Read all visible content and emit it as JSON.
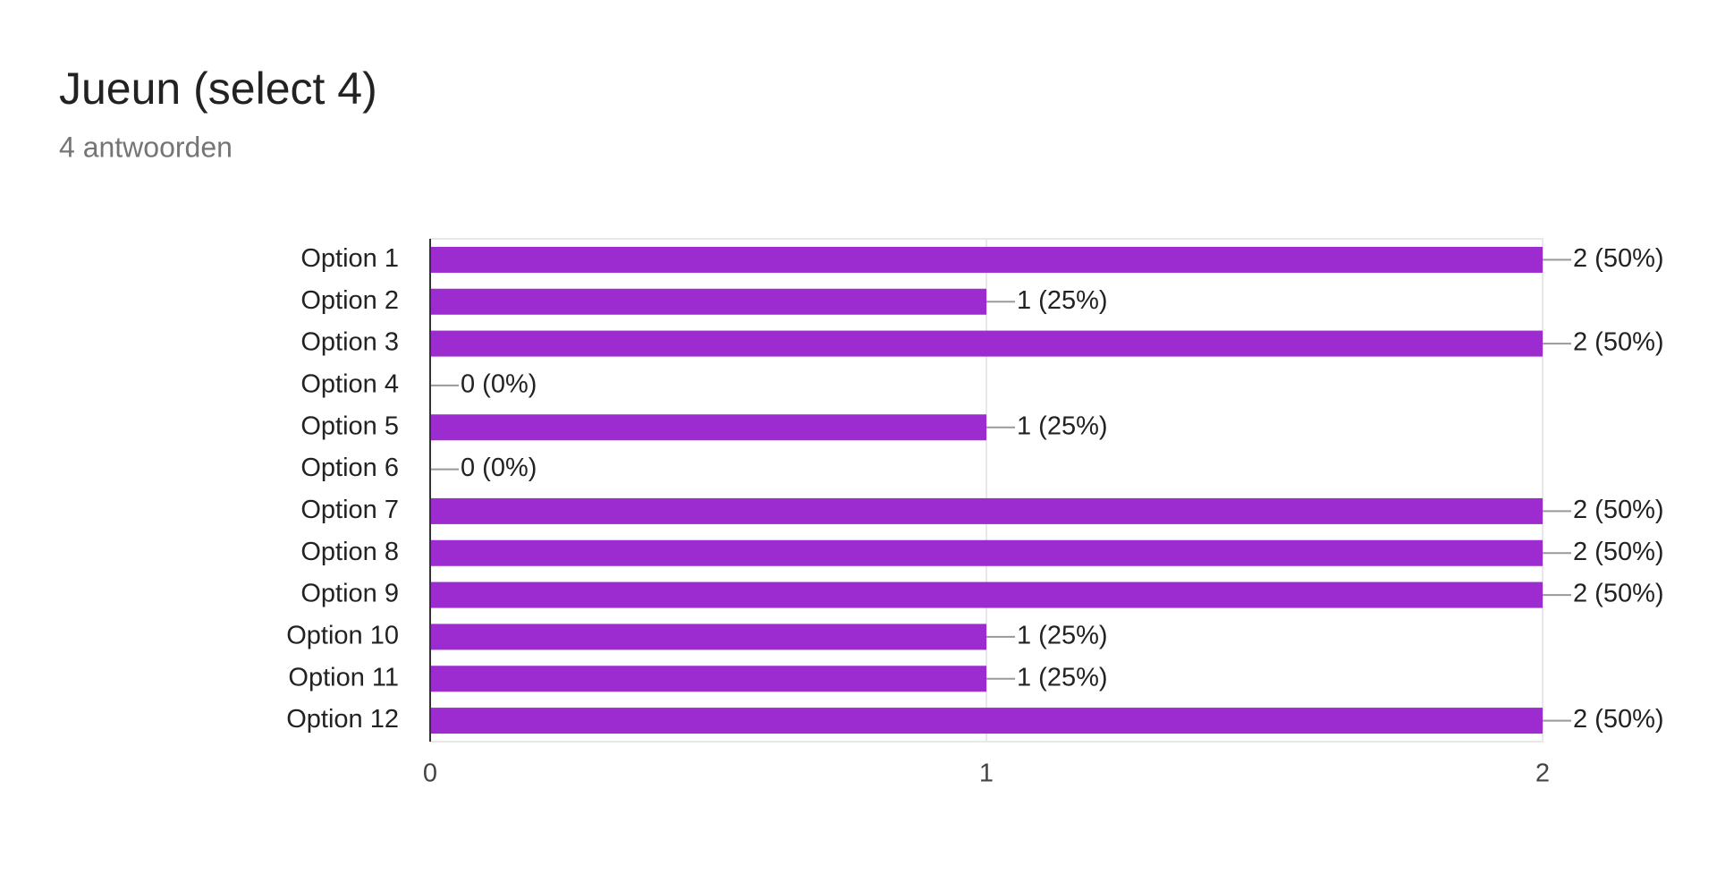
{
  "chart_data": {
    "type": "bar",
    "orientation": "horizontal",
    "title": "Jueun (select 4)",
    "subtitle": "4 antwoorden",
    "categories": [
      "Option 1",
      "Option 2",
      "Option 3",
      "Option 4",
      "Option 5",
      "Option 6",
      "Option 7",
      "Option 8",
      "Option 9",
      "Option 10",
      "Option 11",
      "Option 12"
    ],
    "values": [
      2,
      1,
      2,
      0,
      1,
      0,
      2,
      2,
      2,
      1,
      1,
      2
    ],
    "value_labels": [
      "2 (50%)",
      "1 (25%)",
      "2 (50%)",
      "0 (0%)",
      "1 (25%)",
      "0 (0%)",
      "2 (50%)",
      "2 (50%)",
      "2 (50%)",
      "1 (25%)",
      "1 (25%)",
      "2 (50%)"
    ],
    "color": "#9c2ccf",
    "xlim": [
      0,
      2
    ],
    "xticks": [
      0,
      1,
      2
    ],
    "grid": true
  }
}
